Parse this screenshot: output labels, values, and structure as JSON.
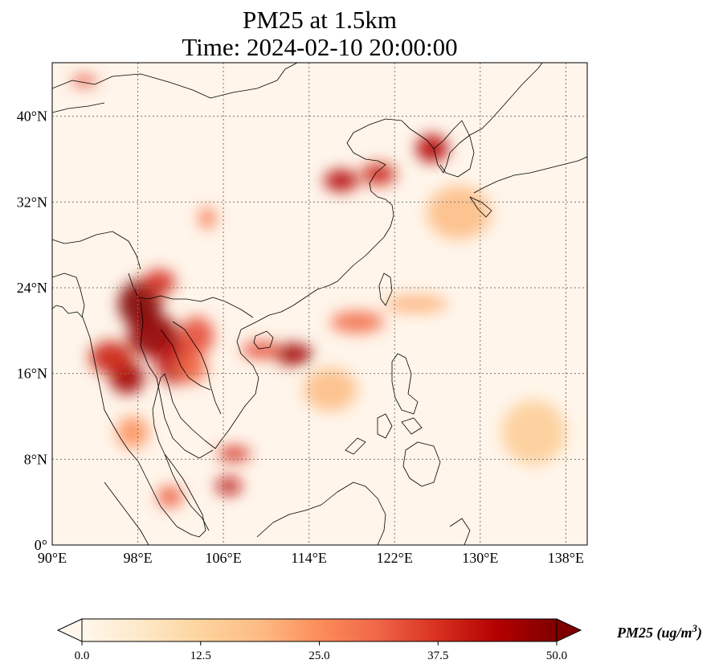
{
  "title_line1": "PM25 at 1.5km",
  "title_line2": "Time: 2024-02-10 20:00:00",
  "colorbar": {
    "label": "PM25 (ug/m",
    "label_sup": "3",
    "label_close": ")",
    "ticks": [
      "0.0",
      "12.5",
      "25.0",
      "37.5",
      "50.0"
    ],
    "min": 0,
    "max": 50,
    "extend": "both",
    "colormap": "OrRd",
    "colors": [
      "#fff7ec",
      "#fee8c8",
      "#fdd49e",
      "#fdbb84",
      "#fc8d59",
      "#ef6548",
      "#d7301f",
      "#b30000",
      "#7f0000"
    ]
  },
  "map": {
    "projection": "PlateCarree",
    "lon_range": [
      90,
      140
    ],
    "lat_range": [
      0,
      45
    ],
    "gridlines": "dotted",
    "lon_ticks": [
      {
        "value": 90,
        "label": "90°E"
      },
      {
        "value": 98,
        "label": "98°E"
      },
      {
        "value": 106,
        "label": "106°E"
      },
      {
        "value": 114,
        "label": "114°E"
      },
      {
        "value": 122,
        "label": "122°E"
      },
      {
        "value": 130,
        "label": "130°E"
      },
      {
        "value": 138,
        "label": "138°E"
      }
    ],
    "lat_ticks": [
      {
        "value": 0,
        "label": "0°"
      },
      {
        "value": 8,
        "label": "8°N"
      },
      {
        "value": 16,
        "label": "16°N"
      },
      {
        "value": 24,
        "label": "24°N"
      },
      {
        "value": 32,
        "label": "32°N"
      },
      {
        "value": 40,
        "label": "40°N"
      }
    ]
  },
  "chart_data": {
    "type": "heatmap",
    "variable": "PM25",
    "level": "1.5km",
    "time": "2024-02-10 20:00:00",
    "units": "ug/m^3",
    "x_range_lon": [
      90,
      140
    ],
    "y_range_lat": [
      0,
      45
    ],
    "value_range": [
      0,
      50
    ],
    "background_level": 3,
    "hotspots": [
      {
        "lon": 98.2,
        "lat": 22.5,
        "value": 50,
        "rlon": 2.0,
        "rlat": 2.2
      },
      {
        "lon": 99.5,
        "lat": 19.5,
        "value": 48,
        "rlon": 2.4,
        "rlat": 2.0
      },
      {
        "lon": 97.0,
        "lat": 15.6,
        "value": 46,
        "rlon": 1.6,
        "rlat": 1.5
      },
      {
        "lon": 95.5,
        "lat": 17.5,
        "value": 40,
        "rlon": 2.0,
        "rlat": 1.5
      },
      {
        "lon": 101.5,
        "lat": 17.0,
        "value": 42,
        "rlon": 1.8,
        "rlat": 2.0
      },
      {
        "lon": 100.0,
        "lat": 24.5,
        "value": 38,
        "rlon": 1.5,
        "rlat": 1.2
      },
      {
        "lon": 103.5,
        "lat": 19.5,
        "value": 34,
        "rlon": 1.6,
        "rlat": 1.8
      },
      {
        "lon": 103.0,
        "lat": 16.5,
        "value": 30,
        "rlon": 1.5,
        "rlat": 1.4
      },
      {
        "lon": 112.5,
        "lat": 17.8,
        "value": 46,
        "rlon": 1.8,
        "rlat": 1.0
      },
      {
        "lon": 109.5,
        "lat": 18.2,
        "value": 34,
        "rlon": 1.8,
        "rlat": 0.8
      },
      {
        "lon": 117.0,
        "lat": 34.0,
        "value": 44,
        "rlon": 1.6,
        "rlat": 1.0
      },
      {
        "lon": 120.5,
        "lat": 34.6,
        "value": 40,
        "rlon": 1.6,
        "rlat": 1.0
      },
      {
        "lon": 125.5,
        "lat": 37.0,
        "value": 44,
        "rlon": 1.5,
        "rlat": 1.3
      },
      {
        "lon": 106.5,
        "lat": 5.5,
        "value": 42,
        "rlon": 1.2,
        "rlat": 0.8
      },
      {
        "lon": 107.0,
        "lat": 8.5,
        "value": 38,
        "rlon": 1.5,
        "rlat": 0.7
      },
      {
        "lon": 101.0,
        "lat": 4.5,
        "value": 32,
        "rlon": 1.2,
        "rlat": 1.0
      },
      {
        "lon": 93.0,
        "lat": 43.3,
        "value": 34,
        "rlon": 1.2,
        "rlat": 0.5
      },
      {
        "lon": 104.5,
        "lat": 30.5,
        "value": 28,
        "rlon": 0.8,
        "rlat": 1.0
      },
      {
        "lon": 97.5,
        "lat": 10.5,
        "value": 24,
        "rlon": 1.5,
        "rlat": 1.5
      },
      {
        "lon": 118.5,
        "lat": 20.8,
        "value": 30,
        "rlon": 2.5,
        "rlat": 1.0
      },
      {
        "lon": 124.0,
        "lat": 22.5,
        "value": 20,
        "rlon": 3.0,
        "rlat": 0.8
      },
      {
        "lon": 128.0,
        "lat": 31.0,
        "value": 18,
        "rlon": 3.0,
        "rlat": 2.5
      },
      {
        "lon": 116.0,
        "lat": 14.5,
        "value": 18,
        "rlon": 2.5,
        "rlat": 2.0
      },
      {
        "lon": 135.0,
        "lat": 10.5,
        "value": 14,
        "rlon": 3.0,
        "rlat": 3.0
      }
    ]
  }
}
